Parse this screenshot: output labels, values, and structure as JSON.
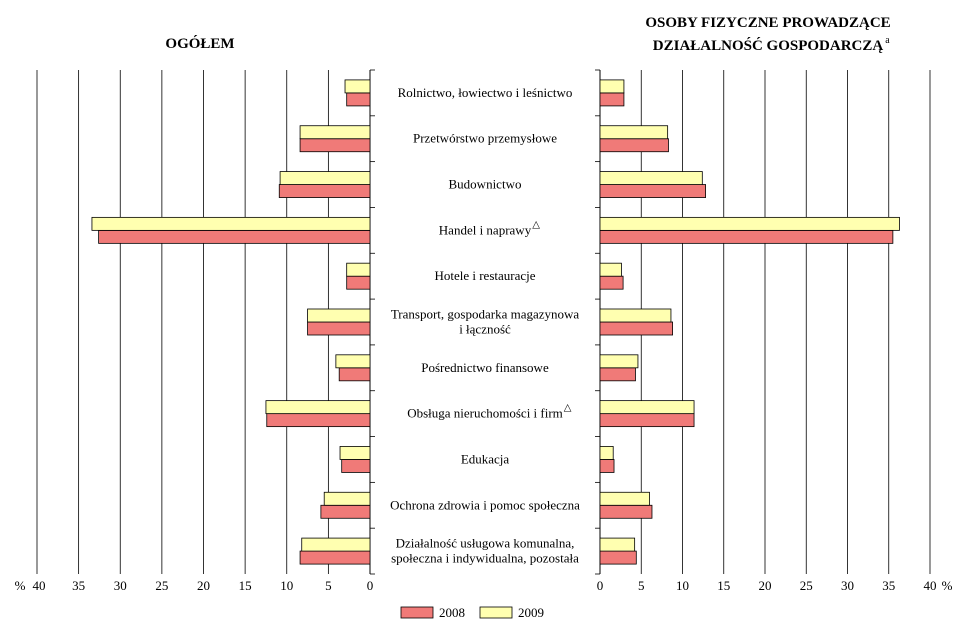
{
  "chart_data": {
    "type": "bar",
    "orientation": "horizontal",
    "categories": [
      [
        "Rolnictwo, łowiectwo i leśnictwo"
      ],
      [
        "Przetwórstwo przemysłowe"
      ],
      [
        "Budownictwo"
      ],
      [
        "Handel i naprawy"
      ],
      [
        "Hotele i restauracje"
      ],
      [
        "Transport, gospodarka magazynowa",
        "i łączność"
      ],
      [
        "Pośrednictwo finansowe"
      ],
      [
        "Obsługa nieruchomości i firm"
      ],
      [
        "Edukacja"
      ],
      [
        "Ochrona zdrowia i pomoc społeczna"
      ],
      [
        "Działalność usługowa komunalna,",
        "społeczna i indywidualna, pozostała"
      ]
    ],
    "category_marks": [
      "",
      "",
      "",
      "△",
      "",
      "",
      "",
      "△",
      "",
      "",
      ""
    ],
    "legend": [
      "2008",
      "2009"
    ],
    "colors": {
      "2008": "#f07a78",
      "2009": "#ffffb0"
    },
    "panels": [
      {
        "title": [
          "OGÓŁEM"
        ],
        "title_sup": "",
        "direction": "left",
        "xlim": [
          0,
          40
        ],
        "ticks": [
          "40",
          "35",
          "30",
          "25",
          "20",
          "15",
          "10",
          "5",
          "0"
        ],
        "tick_values": [
          40,
          35,
          30,
          25,
          20,
          15,
          10,
          5,
          0
        ],
        "unit": "%",
        "series": [
          {
            "name": "2008",
            "values": [
              2.8,
              8.4,
              10.9,
              32.6,
              2.8,
              7.5,
              3.7,
              12.4,
              3.4,
              5.9,
              8.4
            ]
          },
          {
            "name": "2009",
            "values": [
              3.0,
              8.4,
              10.8,
              33.4,
              2.8,
              7.5,
              4.1,
              12.5,
              3.6,
              5.5,
              8.2
            ]
          }
        ]
      },
      {
        "title": [
          "OSOBY FIZYCZNE PROWADZĄCE",
          "DZIAŁALNOŚĆ GOSPODARCZĄ"
        ],
        "title_sup": "a",
        "direction": "right",
        "xlim": [
          0,
          40
        ],
        "ticks": [
          "0",
          "5",
          "10",
          "15",
          "20",
          "25",
          "30",
          "35",
          "40"
        ],
        "tick_values": [
          0,
          5,
          10,
          15,
          20,
          25,
          30,
          35,
          40
        ],
        "unit": "%",
        "series": [
          {
            "name": "2008",
            "values": [
              2.9,
              8.3,
              12.8,
              35.5,
              2.8,
              8.8,
              4.3,
              11.4,
              1.7,
              6.3,
              4.4
            ]
          },
          {
            "name": "2009",
            "values": [
              2.9,
              8.2,
              12.4,
              36.3,
              2.6,
              8.6,
              4.6,
              11.4,
              1.6,
              6.0,
              4.2
            ]
          }
        ]
      }
    ],
    "grid": true
  }
}
